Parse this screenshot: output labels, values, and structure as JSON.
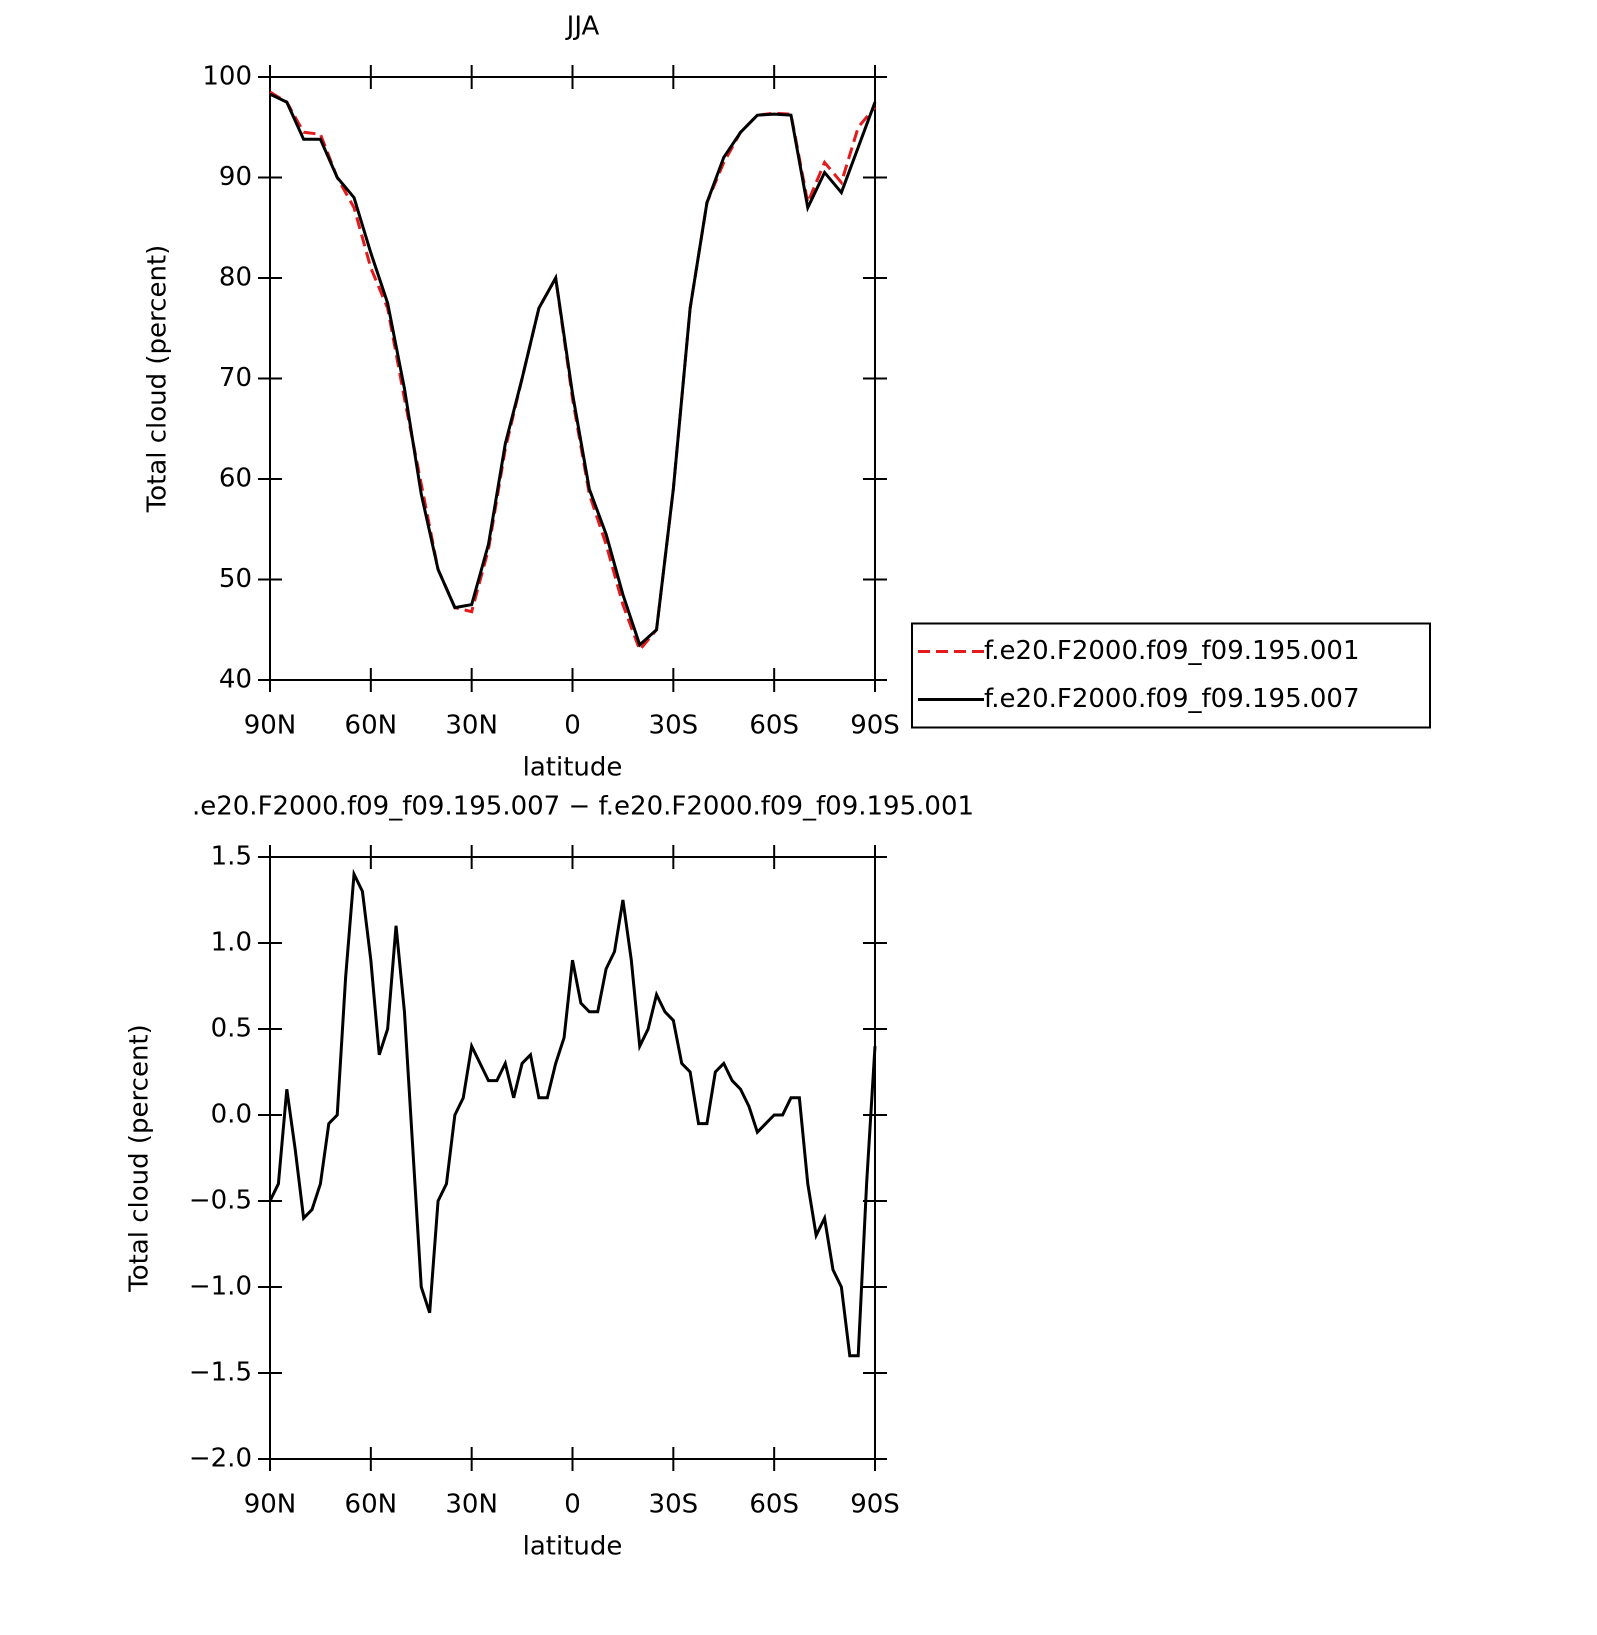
{
  "chart_data": [
    {
      "type": "line",
      "title": "JJA",
      "xlabel": "latitude",
      "ylabel": "Total cloud (percent)",
      "x": [
        90,
        85,
        80,
        75,
        70,
        65,
        60,
        55,
        50,
        45,
        40,
        35,
        30,
        25,
        20,
        15,
        10,
        5,
        0,
        -5,
        -10,
        -15,
        -20,
        -25,
        -30,
        -35,
        -40,
        -45,
        -50,
        -55,
        -60,
        -65,
        -70,
        -75,
        -80,
        -85,
        -90
      ],
      "series": [
        {
          "name": "f.e20.F2000.f09_f09.195.001",
          "color": "#e41a1c",
          "style": "dashed",
          "values": [
            98.5,
            97.5,
            94.5,
            94.3,
            90,
            87,
            81,
            77,
            68,
            59.5,
            51,
            47.2,
            46.8,
            53,
            63,
            70,
            77,
            80,
            68,
            58.5,
            53.5,
            47.5,
            43,
            45,
            59,
            77,
            87.5,
            91.5,
            94.5,
            96.2,
            96.4,
            96.3,
            87.5,
            91.5,
            89.5,
            95,
            97
          ]
        },
        {
          "name": "f.e20.F2000.f09_f09.195.007",
          "color": "#000000",
          "style": "solid",
          "values": [
            98.3,
            97.5,
            93.8,
            93.8,
            90,
            88,
            82.5,
            77.5,
            69,
            58.5,
            51,
            47.2,
            47.5,
            53.5,
            63.5,
            70,
            77,
            80,
            68.5,
            59,
            54.5,
            48.5,
            43.5,
            45,
            59,
            77,
            87.5,
            92,
            94.5,
            96.2,
            96.3,
            96.2,
            87,
            90.5,
            88.5,
            93,
            97.5
          ]
        }
      ],
      "xlim": [
        90,
        -90
      ],
      "xticks": [
        {
          "value": 90,
          "label": "90N"
        },
        {
          "value": 60,
          "label": "60N"
        },
        {
          "value": 30,
          "label": "30N"
        },
        0,
        {
          "value": -30,
          "label": "30S"
        },
        {
          "value": -60,
          "label": "60S"
        },
        {
          "value": -90,
          "label": "90S"
        }
      ],
      "ylim": [
        40,
        100
      ],
      "yticks": [
        40,
        50,
        60,
        70,
        80,
        90,
        100
      ],
      "legend": "right"
    },
    {
      "type": "line",
      "title": ".e20.F2000.f09_f09.195.007 − f.e20.F2000.f09_f09.195.001",
      "xlabel": "latitude",
      "ylabel": "Total cloud (percent)",
      "x": [
        90,
        87.5,
        85,
        82.5,
        80,
        77.5,
        75,
        72.5,
        70,
        67.5,
        65,
        62.5,
        60,
        57.5,
        55,
        52.5,
        50,
        47.5,
        45,
        42.5,
        40,
        37.5,
        35,
        32.5,
        30,
        27.5,
        25,
        22.5,
        20,
        17.5,
        15,
        12.5,
        10,
        7.5,
        5,
        2.5,
        0,
        -2.5,
        -5,
        -7.5,
        -10,
        -12.5,
        -15,
        -17.5,
        -20,
        -22.5,
        -25,
        -27.5,
        -30,
        -32.5,
        -35,
        -37.5,
        -40,
        -42.5,
        -45,
        -47.5,
        -50,
        -52.5,
        -55,
        -57.5,
        -60,
        -62.5,
        -65,
        -67.5,
        -70,
        -72.5,
        -75,
        -77.5,
        -80,
        -82.5,
        -85,
        -87.5,
        -90
      ],
      "series": [
        {
          "color": "#000000",
          "style": "solid",
          "values": [
            -0.5,
            -0.4,
            0.15,
            -0.2,
            -0.6,
            -0.55,
            -0.4,
            -0.05,
            0.0,
            0.8,
            1.4,
            1.3,
            0.9,
            0.35,
            0.5,
            1.1,
            0.6,
            -0.2,
            -1.0,
            -1.15,
            -0.5,
            -0.4,
            0.0,
            0.1,
            0.4,
            0.3,
            0.2,
            0.2,
            0.3,
            0.1,
            0.3,
            0.35,
            0.1,
            0.1,
            0.3,
            0.45,
            0.9,
            0.65,
            0.6,
            0.6,
            0.85,
            0.95,
            1.25,
            0.9,
            0.4,
            0.5,
            0.7,
            0.6,
            0.55,
            0.3,
            0.25,
            -0.05,
            -0.05,
            0.25,
            0.3,
            0.2,
            0.15,
            0.05,
            -0.1,
            -0.05,
            0.0,
            0.0,
            0.1,
            0.1,
            -0.4,
            -0.7,
            -0.6,
            -0.9,
            -1.0,
            -1.4,
            -1.4,
            -0.4,
            0.4
          ]
        }
      ],
      "xlim": [
        90,
        -90
      ],
      "xticks": [
        {
          "value": 90,
          "label": "90N"
        },
        {
          "value": 60,
          "label": "60N"
        },
        {
          "value": 30,
          "label": "30N"
        },
        0,
        {
          "value": -30,
          "label": "30S"
        },
        {
          "value": -60,
          "label": "60S"
        },
        {
          "value": -90,
          "label": "90S"
        }
      ],
      "ylim": [
        -2,
        1.5
      ],
      "yticks": [
        {
          "value": -2,
          "label": "−2.0"
        },
        {
          "value": -1.5,
          "label": "−1.5"
        },
        {
          "value": -1,
          "label": "−1.0"
        },
        {
          "value": -0.5,
          "label": "−0.5"
        },
        {
          "value": 0,
          "label": "0.0"
        },
        {
          "value": 0.5,
          "label": "0.5"
        },
        {
          "value": 1,
          "label": "1.0"
        },
        {
          "value": 1.5,
          "label": "1.5"
        }
      ]
    }
  ]
}
